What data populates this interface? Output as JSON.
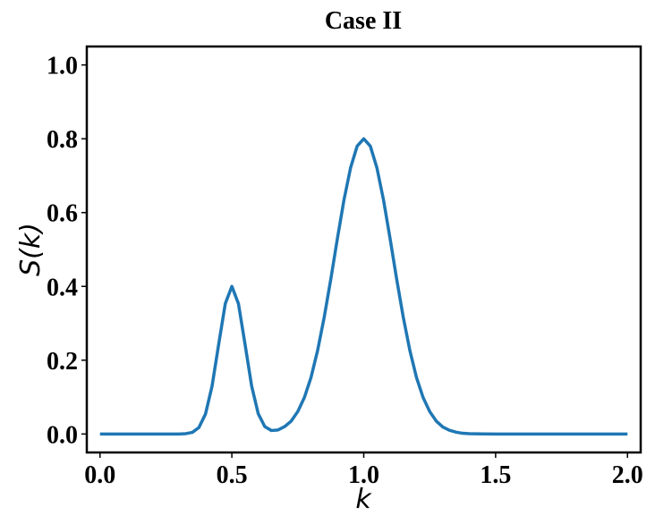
{
  "chart_data": {
    "type": "line",
    "title": "Case II",
    "xlabel": "k",
    "ylabel": "S(k)",
    "x": [
      0,
      0.1,
      0.2,
      0.3,
      0.325,
      0.35,
      0.375,
      0.4,
      0.425,
      0.45,
      0.475,
      0.5,
      0.525,
      0.55,
      0.575,
      0.6,
      0.625,
      0.65,
      0.675,
      0.7,
      0.725,
      0.75,
      0.775,
      0.8,
      0.825,
      0.85,
      0.875,
      0.9,
      0.925,
      0.95,
      0.975,
      1.0,
      1.025,
      1.05,
      1.075,
      1.1,
      1.125,
      1.15,
      1.175,
      1.2,
      1.225,
      1.25,
      1.275,
      1.3,
      1.325,
      1.35,
      1.375,
      1.4,
      1.425,
      1.45,
      1.5,
      1.6,
      1.7,
      1.8,
      1.9,
      2.0
    ],
    "series": [
      {
        "color": "#1f77b4",
        "values": [
          0,
          0,
          0,
          0.0001,
          0.001,
          0.0044,
          0.0176,
          0.054,
          0.13,
          0.243,
          0.353,
          0.4,
          0.353,
          0.243,
          0.13,
          0.055,
          0.02,
          0.0095,
          0.011,
          0.02,
          0.035,
          0.061,
          0.099,
          0.153,
          0.226,
          0.316,
          0.419,
          0.529,
          0.634,
          0.721,
          0.78,
          0.8,
          0.78,
          0.721,
          0.634,
          0.529,
          0.419,
          0.316,
          0.226,
          0.153,
          0.099,
          0.061,
          0.035,
          0.019,
          0.01,
          0.005,
          0.002,
          0.001,
          0.0005,
          0.0002,
          0,
          0,
          0,
          0,
          0,
          0
        ]
      }
    ],
    "xlim": [
      -0.05,
      2.05
    ],
    "ylim": [
      -0.05,
      1.05
    ],
    "xticks": [
      {
        "value": 0,
        "label": "0.0"
      },
      0.5,
      {
        "value": 1,
        "label": "1.0"
      },
      1.5,
      {
        "value": 2,
        "label": "2.0"
      }
    ],
    "yticks": [
      {
        "value": 0,
        "label": "0.0"
      },
      0.2,
      0.4,
      0.6,
      0.8,
      {
        "value": 1,
        "label": "1.0"
      }
    ]
  }
}
